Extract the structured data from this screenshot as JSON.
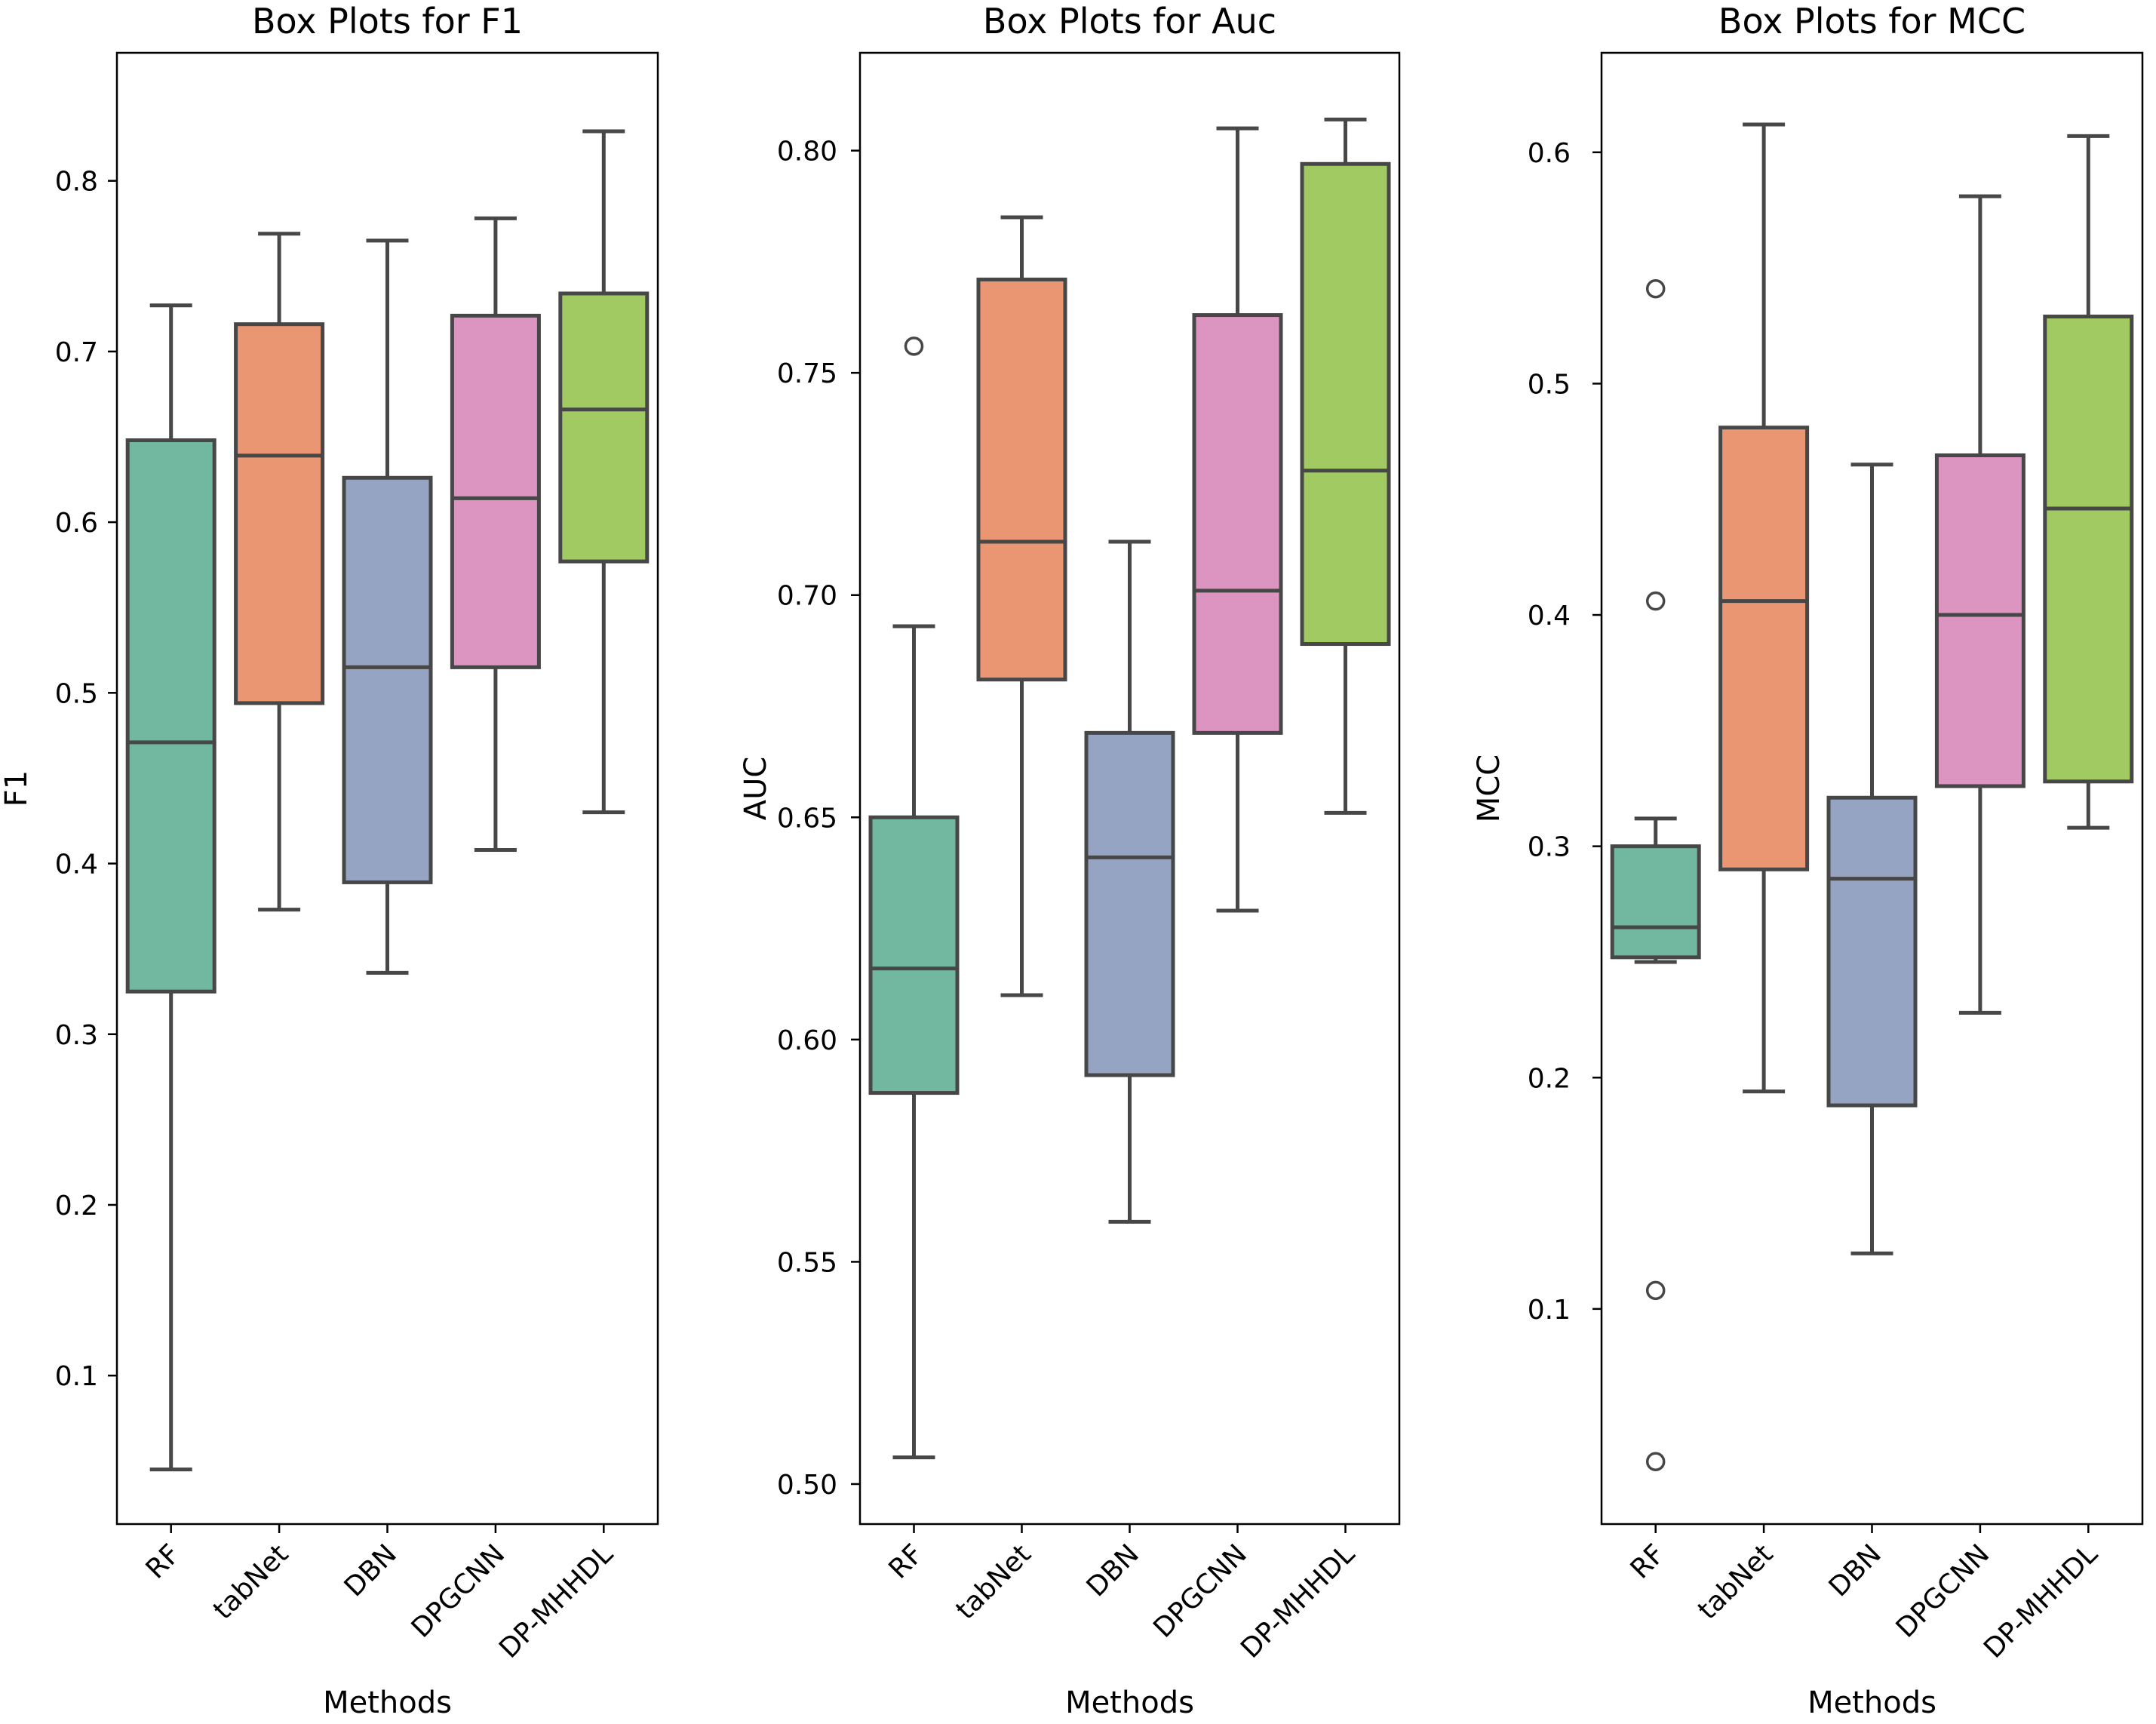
{
  "chart_data": [
    {
      "type": "box",
      "title": "Box Plots for F1",
      "xlabel": "Methods",
      "ylabel": "F1",
      "ylim": [
        0.013,
        0.875
      ],
      "yticks": [
        "0.1",
        "0.2",
        "0.3",
        "0.4",
        "0.5",
        "0.6",
        "0.7",
        "0.8"
      ],
      "ytick_values": [
        0.1,
        0.2,
        0.3,
        0.4,
        0.5,
        0.6,
        0.7,
        0.8
      ],
      "categories": [
        "RF",
        "tabNet",
        "DBN",
        "DPGCNN",
        "DP-MHHDL"
      ],
      "boxes": [
        {
          "whislo": 0.045,
          "q1": 0.325,
          "med": 0.471,
          "q3": 0.648,
          "whishi": 0.727,
          "fliers": []
        },
        {
          "whislo": 0.373,
          "q1": 0.494,
          "med": 0.639,
          "q3": 0.716,
          "whishi": 0.769,
          "fliers": []
        },
        {
          "whislo": 0.336,
          "q1": 0.389,
          "med": 0.515,
          "q3": 0.626,
          "whishi": 0.765,
          "fliers": []
        },
        {
          "whislo": 0.408,
          "q1": 0.515,
          "med": 0.614,
          "q3": 0.721,
          "whishi": 0.778,
          "fliers": []
        },
        {
          "whislo": 0.43,
          "q1": 0.577,
          "med": 0.666,
          "q3": 0.734,
          "whishi": 0.829,
          "fliers": []
        }
      ]
    },
    {
      "type": "box",
      "title": "Box Plots for Auc",
      "xlabel": "Methods",
      "ylabel": "AUC",
      "ylim": [
        0.491,
        0.822
      ],
      "yticks": [
        "0.50",
        "0.55",
        "0.60",
        "0.65",
        "0.70",
        "0.75",
        "0.80"
      ],
      "ytick_values": [
        0.5,
        0.55,
        0.6,
        0.65,
        0.7,
        0.75,
        0.8
      ],
      "categories": [
        "RF",
        "tabNet",
        "DBN",
        "DPGCNN",
        "DP-MHHDL"
      ],
      "boxes": [
        {
          "whislo": 0.506,
          "q1": 0.588,
          "med": 0.616,
          "q3": 0.65,
          "whishi": 0.693,
          "fliers": [
            0.756
          ]
        },
        {
          "whislo": 0.61,
          "q1": 0.681,
          "med": 0.712,
          "q3": 0.771,
          "whishi": 0.785,
          "fliers": []
        },
        {
          "whislo": 0.559,
          "q1": 0.592,
          "med": 0.641,
          "q3": 0.669,
          "whishi": 0.712,
          "fliers": []
        },
        {
          "whislo": 0.629,
          "q1": 0.669,
          "med": 0.701,
          "q3": 0.763,
          "whishi": 0.805,
          "fliers": []
        },
        {
          "whislo": 0.651,
          "q1": 0.689,
          "med": 0.728,
          "q3": 0.797,
          "whishi": 0.807,
          "fliers": []
        }
      ]
    },
    {
      "type": "box",
      "title": "Box Plots for MCC",
      "xlabel": "Methods",
      "ylabel": "MCC",
      "ylim": [
        0.007,
        0.643
      ],
      "yticks": [
        "0.1",
        "0.2",
        "0.3",
        "0.4",
        "0.5",
        "0.6"
      ],
      "ytick_values": [
        0.1,
        0.2,
        0.3,
        0.4,
        0.5,
        0.6
      ],
      "categories": [
        "RF",
        "tabNet",
        "DBN",
        "DPGCNN",
        "DP-MHHDL"
      ],
      "boxes": [
        {
          "whislo": 0.25,
          "q1": 0.252,
          "med": 0.265,
          "q3": 0.3,
          "whishi": 0.312,
          "fliers": [
            0.541,
            0.406,
            0.108,
            0.034
          ]
        },
        {
          "whislo": 0.194,
          "q1": 0.29,
          "med": 0.406,
          "q3": 0.481,
          "whishi": 0.612,
          "fliers": []
        },
        {
          "whislo": 0.124,
          "q1": 0.188,
          "med": 0.286,
          "q3": 0.321,
          "whishi": 0.465,
          "fliers": []
        },
        {
          "whislo": 0.228,
          "q1": 0.326,
          "med": 0.4,
          "q3": 0.469,
          "whishi": 0.581,
          "fliers": []
        },
        {
          "whislo": 0.308,
          "q1": 0.328,
          "med": 0.446,
          "q3": 0.529,
          "whishi": 0.607,
          "fliers": []
        }
      ]
    }
  ],
  "colors": {
    "RF": "#72b8a0",
    "tabNet": "#eb9673",
    "DBN": "#96a4c4",
    "DPGCNN": "#dc94c0",
    "DP-MHHDL": "#a2ca62",
    "line": "#474747",
    "axis": "#000000"
  }
}
